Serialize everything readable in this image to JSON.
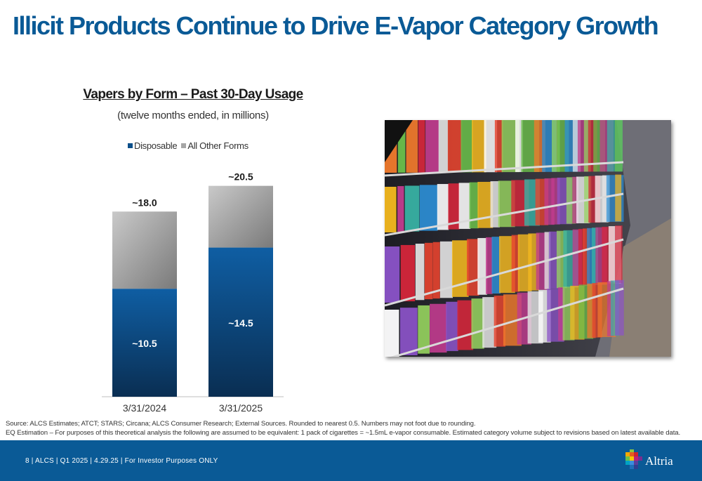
{
  "slide": {
    "title": "Illicit Products Continue to Drive E-Vapor Category Growth",
    "footer_text": "8 | ALCS | Q1 2025 | 4.29.25 | For Investor Purposes ONLY",
    "logo_text": "Altria",
    "source_line_1": "Source: ALCS Estimates; ATCT; STARS; Circana; ALCS Consumer Research; External Sources. Rounded to nearest 0.5. Numbers may not foot due to rounding.",
    "source_line_2": "EQ Estimation – For purposes of this theoretical analysis the following are assumed to be equivalent: 1 pack of cigarettes = ~1.5mL e-vapor consumable. Estimated category volume subject to revisions based on latest available data."
  },
  "chart_data": {
    "type": "bar",
    "stacked": true,
    "title": "Vapers by Form – Past 30-Day Usage",
    "subtitle": "(twelve months ended, in millions)",
    "categories": [
      "3/31/2024",
      "3/31/2025"
    ],
    "series": [
      {
        "name": "Disposable",
        "values": [
          10.5,
          14.5
        ],
        "labels": [
          "~10.5",
          "~14.5"
        ],
        "color": "#0b4f8a"
      },
      {
        "name": "All Other Forms",
        "values": [
          7.5,
          6.0
        ],
        "color": "#9e9e9e"
      }
    ],
    "totals": [
      18.0,
      20.5
    ],
    "total_labels": [
      "~18.0",
      "~20.5"
    ],
    "ylim": [
      0,
      21.5
    ],
    "legend_position": "top",
    "grid": false
  },
  "icons": {
    "photo": "store-shelf-photo",
    "logo": "altria-logo-icon"
  }
}
